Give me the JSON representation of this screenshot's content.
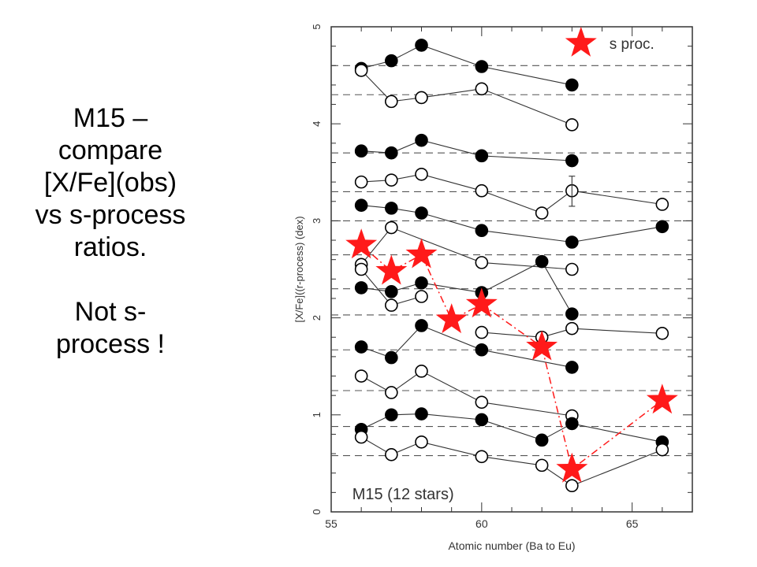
{
  "slide": {
    "caption_lines": [
      "M15 –",
      "compare",
      "[X/Fe](obs)",
      "vs s-process",
      "ratios."
    ],
    "caption_lines2": [
      "Not s-",
      "process !"
    ]
  },
  "chart_data": {
    "type": "scatter",
    "title": "",
    "xlabel": "Atomic number (Ba to Eu)",
    "ylabel": "[X/Fe]((r-process) (dex)",
    "xlim": [
      55,
      67
    ],
    "ylim": [
      0,
      5
    ],
    "xticks": [
      55,
      60,
      65
    ],
    "yticks": [
      0,
      1,
      2,
      3,
      4,
      5
    ],
    "inner_label": "M15 (12 stars)",
    "legend": {
      "label": "s proc.",
      "position": "top-right"
    },
    "reference_levels": [
      4.6,
      4.3,
      3.7,
      3.3,
      3.0,
      2.65,
      2.3,
      2.03,
      1.67,
      1.25,
      0.88,
      0.58
    ],
    "series": [
      {
        "marker": "filled",
        "x": [
          56,
          57,
          58,
          60,
          63
        ],
        "y": [
          4.57,
          4.65,
          4.81,
          4.59,
          4.4
        ]
      },
      {
        "marker": "open",
        "x": [
          56,
          57,
          58,
          60,
          63
        ],
        "y": [
          4.55,
          4.23,
          4.27,
          4.36,
          3.99
        ]
      },
      {
        "marker": "filled",
        "x": [
          56,
          57,
          58,
          60,
          63
        ],
        "y": [
          3.72,
          3.7,
          3.83,
          3.67,
          3.62
        ]
      },
      {
        "marker": "open",
        "x": [
          56,
          57,
          58,
          60,
          62,
          63,
          66
        ],
        "y": [
          3.4,
          3.42,
          3.48,
          3.31,
          3.08,
          3.31,
          3.17
        ]
      },
      {
        "marker": "filled",
        "x": [
          56,
          57,
          58,
          60,
          63,
          66
        ],
        "y": [
          3.16,
          3.13,
          3.08,
          2.9,
          2.78,
          2.94
        ]
      },
      {
        "marker": "open",
        "x": [
          56,
          57,
          60,
          63
        ],
        "y": [
          2.55,
          2.93,
          2.57,
          2.5
        ]
      },
      {
        "marker": "filled",
        "x": [
          56,
          57,
          58,
          60,
          62,
          63
        ],
        "y": [
          2.31,
          2.27,
          2.36,
          2.26,
          2.58,
          2.04
        ]
      },
      {
        "marker": "open",
        "x": [
          56,
          57,
          58
        ],
        "y": [
          2.5,
          2.13,
          2.22
        ]
      },
      {
        "marker": "open",
        "x": [
          60,
          62,
          63,
          66
        ],
        "y": [
          1.85,
          1.8,
          1.89,
          1.84
        ]
      },
      {
        "marker": "filled",
        "x": [
          56,
          57,
          58,
          60,
          63
        ],
        "y": [
          1.7,
          1.59,
          1.92,
          1.67,
          1.49
        ]
      },
      {
        "marker": "open",
        "x": [
          56,
          57,
          58,
          60,
          63
        ],
        "y": [
          1.4,
          1.23,
          1.45,
          1.13,
          0.99
        ]
      },
      {
        "marker": "filled",
        "x": [
          56,
          57,
          58,
          60,
          62,
          63,
          66
        ],
        "y": [
          0.85,
          1.0,
          1.01,
          0.95,
          0.74,
          0.91,
          0.72
        ]
      },
      {
        "marker": "open",
        "x": [
          56,
          57,
          58,
          60,
          62,
          63,
          66
        ],
        "y": [
          0.77,
          0.59,
          0.72,
          0.57,
          0.48,
          0.27,
          0.64
        ]
      }
    ],
    "s_process": {
      "color": "#ff1a1a",
      "x": [
        56,
        57,
        58,
        59,
        60,
        62,
        63,
        66
      ],
      "y": [
        2.75,
        2.48,
        2.65,
        1.98,
        2.14,
        1.7,
        0.44,
        1.15
      ]
    },
    "error_bar": {
      "x": 63,
      "y": 3.31,
      "low": 3.15,
      "high": 3.46
    }
  }
}
